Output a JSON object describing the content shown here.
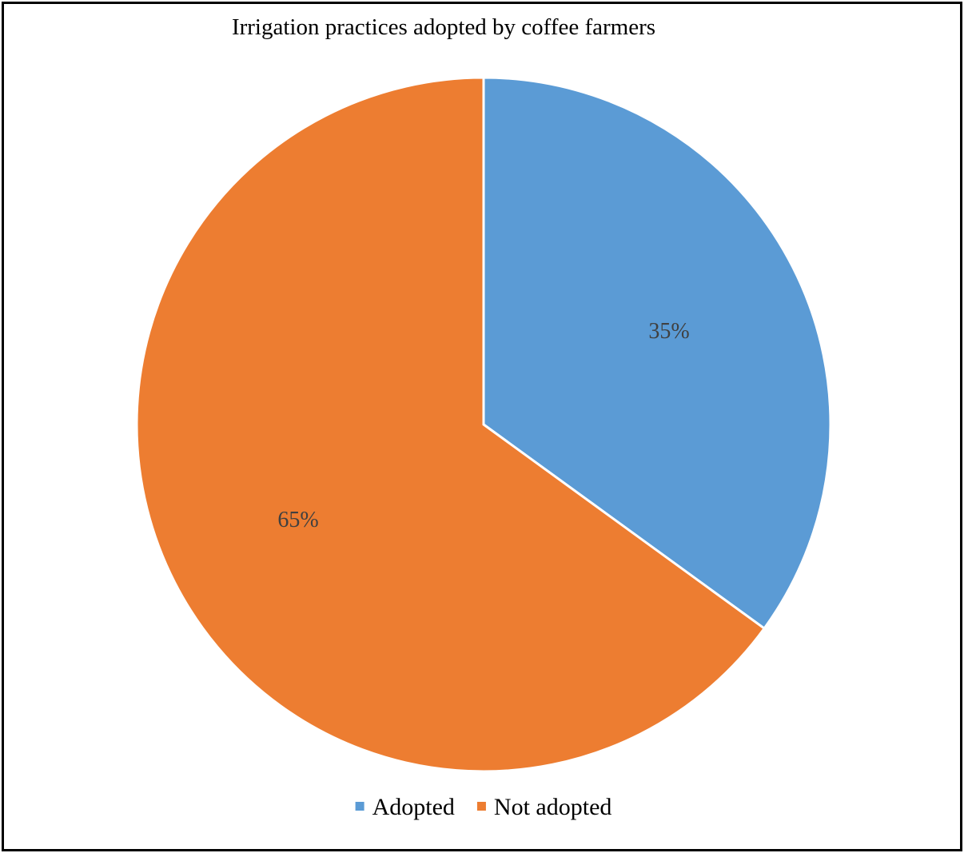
{
  "chart_data": {
    "type": "pie",
    "title": "Irrigation practices adopted by coffee farmers",
    "categories": [
      "Adopted",
      "Not adopted"
    ],
    "values": [
      35,
      65
    ],
    "labels": [
      "35%",
      "65%"
    ],
    "colors": [
      "#5B9BD5",
      "#ED7D31"
    ],
    "legend": {
      "position": "bottom",
      "entries": [
        "Adopted",
        "Not adopted"
      ]
    },
    "start_angle": "12 o'clock",
    "direction": "clockwise"
  }
}
